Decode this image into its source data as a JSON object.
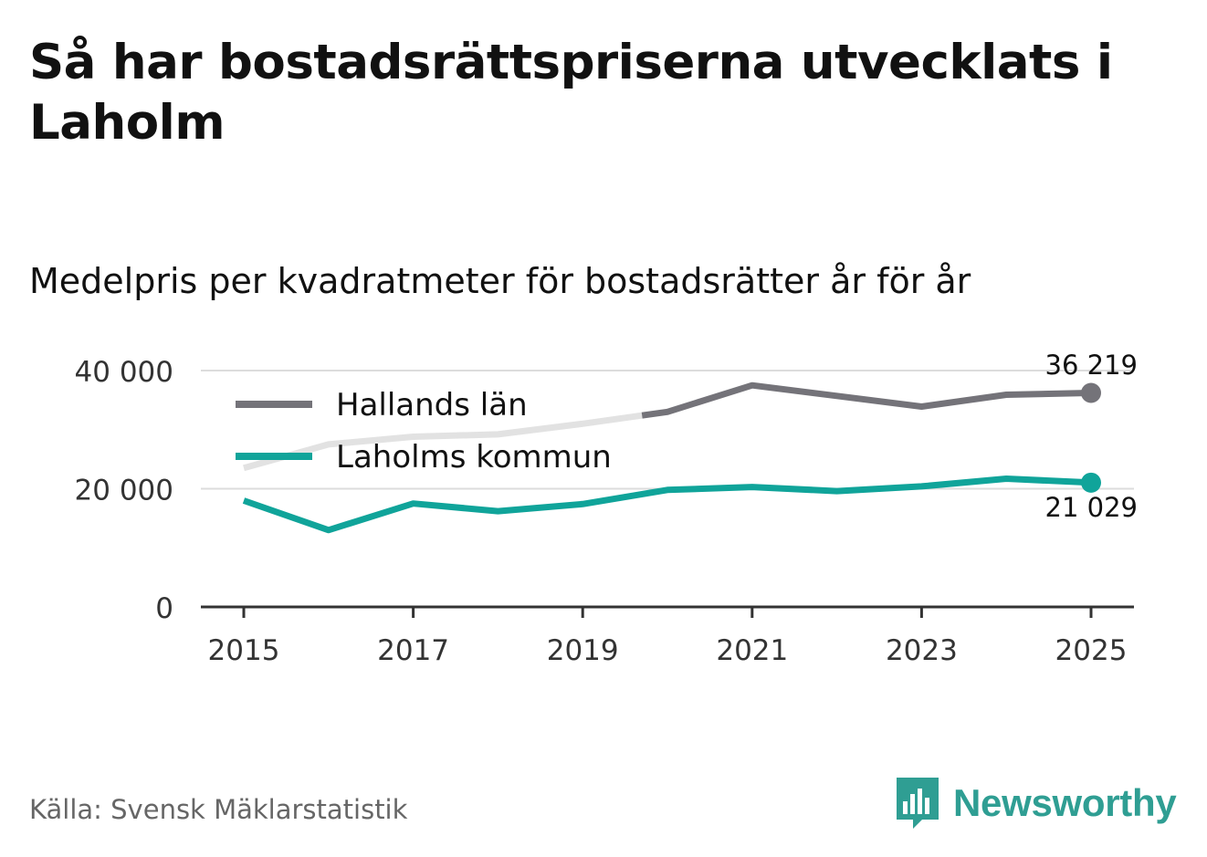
{
  "title": "Så har bostadsrättspriserna utvecklats i Laholm",
  "subtitle": "Medelpris per kvadratmeter för bostadsrätter år för år",
  "source": "Källa: Svensk Mäklarstatistik",
  "brand": {
    "name": "Newsworthy",
    "icon": "bar-chart-speech-bubble-icon",
    "color": "#2f9e93"
  },
  "chart_data": {
    "type": "line",
    "x": [
      2015,
      2016,
      2017,
      2018,
      2019,
      2020,
      2021,
      2022,
      2023,
      2024,
      2025
    ],
    "series": [
      {
        "name": "Hallands län",
        "color": "#747379",
        "faded_color": "#e2e2e2",
        "values": [
          23500,
          27500,
          28800,
          29200,
          31000,
          33000,
          37500,
          35700,
          33900,
          35900,
          36219
        ]
      },
      {
        "name": "Laholms kommun",
        "color": "#10a49a",
        "values": [
          18000,
          13000,
          17500,
          16200,
          17400,
          19800,
          20300,
          19600,
          20400,
          21700,
          21029
        ]
      }
    ],
    "end_labels": [
      "36 219",
      "21 029"
    ],
    "y_ticks": [
      {
        "value": 0,
        "label": "0"
      },
      {
        "value": 20000,
        "label": "20 000"
      },
      {
        "value": 40000,
        "label": "40 000"
      }
    ],
    "x_ticks": [
      {
        "value": 2015,
        "label": "2015"
      },
      {
        "value": 2017,
        "label": "2017"
      },
      {
        "value": 2019,
        "label": "2019"
      },
      {
        "value": 2021,
        "label": "2021"
      },
      {
        "value": 2023,
        "label": "2023"
      },
      {
        "value": 2025,
        "label": "2025"
      }
    ],
    "ylim": [
      0,
      40000
    ],
    "xlim": [
      2015,
      2025
    ],
    "legend_position": "top-left",
    "grid": true
  }
}
